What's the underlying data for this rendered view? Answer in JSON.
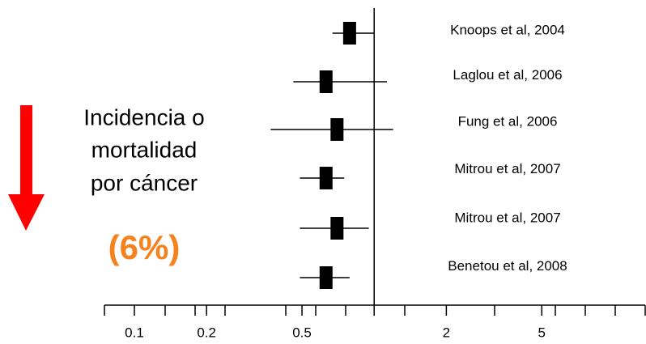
{
  "chart_data": {
    "type": "forest",
    "note_lines": [
      "Incidencia o",
      "mortalidad",
      "por cáncer"
    ],
    "highlight": "(6%)",
    "studies": [
      {
        "name": "Knoops et al, 2004",
        "estimate": 0.79,
        "lower": 0.67,
        "upper": 1.0
      },
      {
        "name": "Laglou et al, 2006",
        "estimate": 0.63,
        "lower": 0.46,
        "upper": 1.13
      },
      {
        "name": "Fung et al, 2006",
        "estimate": 0.7,
        "lower": 0.37,
        "upper": 1.2
      },
      {
        "name": "Mitrou et al, 2007",
        "estimate": 0.63,
        "lower": 0.49,
        "upper": 0.75
      },
      {
        "name": "Mitrou et al, 2007",
        "estimate": 0.7,
        "lower": 0.49,
        "upper": 0.95
      },
      {
        "name": "Benetou et al, 2008",
        "estimate": 0.63,
        "lower": 0.49,
        "upper": 0.79
      }
    ],
    "xscale": "log",
    "xlim": [
      0.075,
      13.5
    ],
    "xticks": [
      0.1,
      0.2,
      0.5,
      2,
      5
    ],
    "reference": 1,
    "marker_color": "#000000",
    "arrow_color": "#ff0000",
    "highlight_color": "#f5821f"
  }
}
